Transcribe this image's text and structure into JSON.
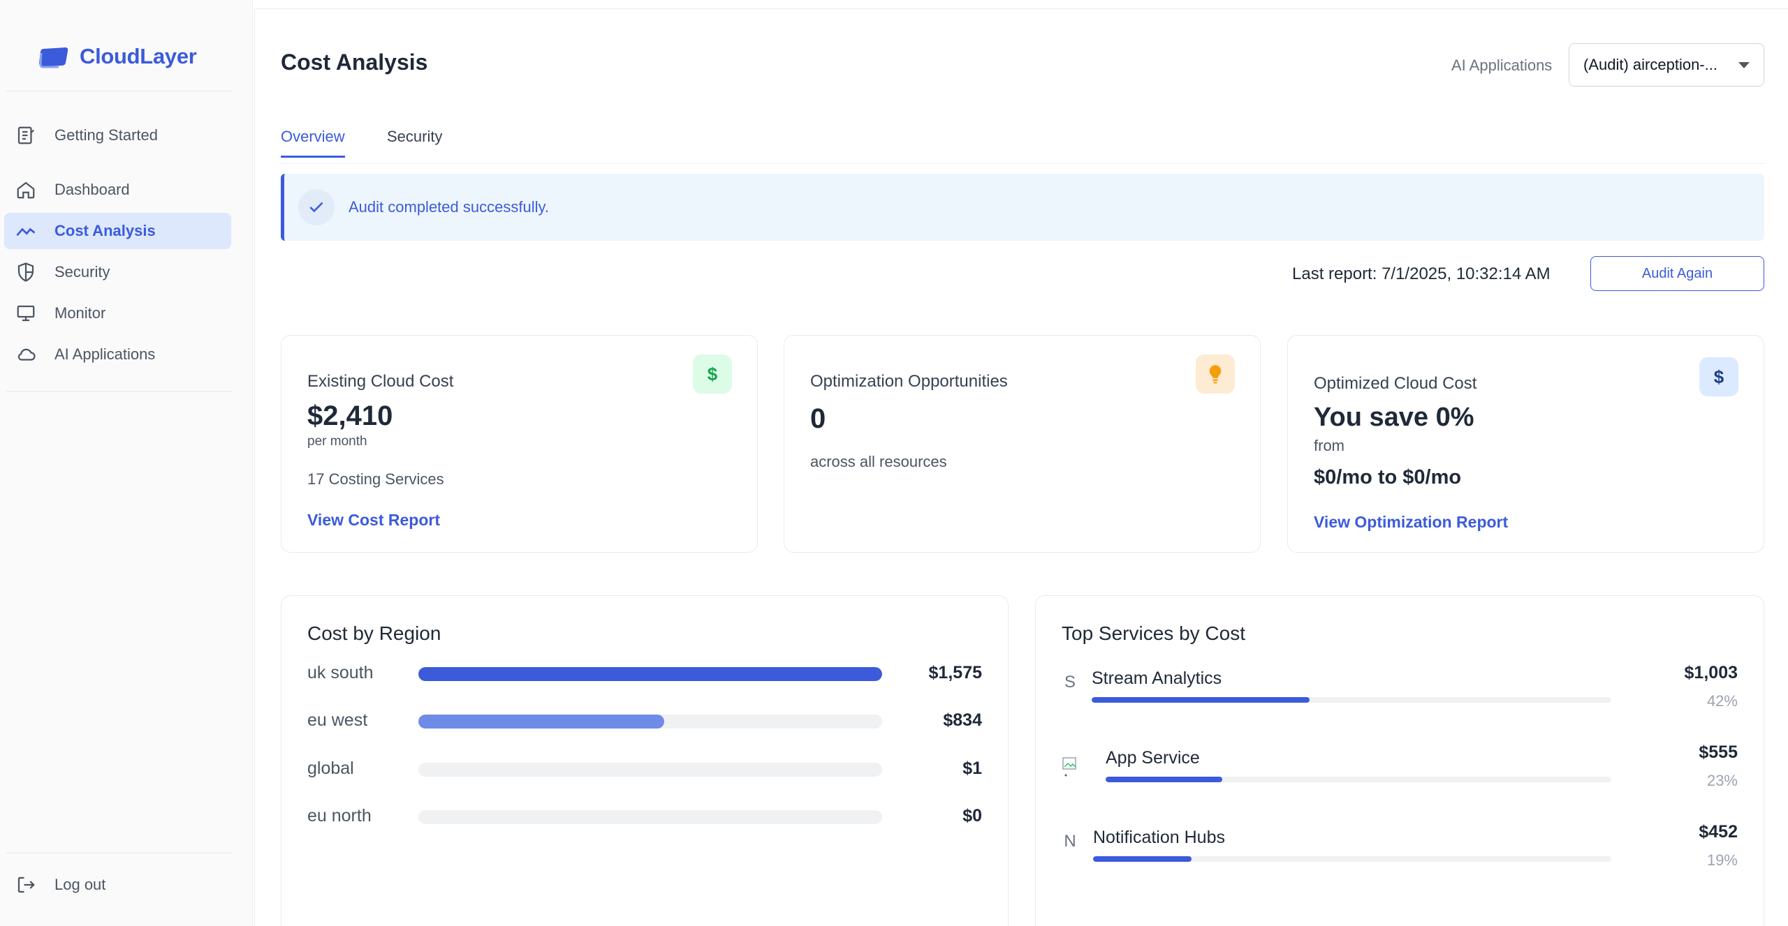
{
  "brand": {
    "name": "CloudLayer",
    "color": "#3b5bdb"
  },
  "sidebar": {
    "items": [
      {
        "label": "Getting Started",
        "icon": "clipboard-list-icon"
      },
      {
        "label": "Dashboard",
        "icon": "home-icon"
      },
      {
        "label": "Cost Analysis",
        "icon": "trend-line-icon",
        "active": true
      },
      {
        "label": "Security",
        "icon": "shield-icon"
      },
      {
        "label": "Monitor",
        "icon": "monitor-icon"
      },
      {
        "label": "AI Applications",
        "icon": "cloud-icon"
      }
    ],
    "logout": {
      "label": "Log out",
      "icon": "logout-icon"
    }
  },
  "header": {
    "title": "Cost Analysis",
    "app_label": "AI Applications",
    "app_select_value": "(Audit) airception-..."
  },
  "tabs": [
    {
      "label": "Overview",
      "active": true
    },
    {
      "label": "Security",
      "active": false
    }
  ],
  "alert": {
    "message": "Audit completed successfully."
  },
  "report": {
    "last_report": "Last report: 7/1/2025, 10:32:14 AM",
    "audit_again_label": "Audit Again"
  },
  "cards": {
    "existing": {
      "title": "Existing Cloud Cost",
      "icon": "dollar-icon",
      "amount": "$2,410",
      "period": "per month",
      "services": "17 Costing Services",
      "link": "View Cost Report"
    },
    "opportunities": {
      "title": "Optimization Opportunities",
      "icon": "lightbulb-icon",
      "count": "0",
      "subtitle": "across all resources"
    },
    "optimized": {
      "title": "Optimized Cloud Cost",
      "icon": "dollar-icon",
      "savings": "You save 0%",
      "from": "from",
      "range": "$0/mo to $0/mo",
      "link": "View Optimization Report"
    }
  },
  "cost_by_region": {
    "title": "Cost by Region",
    "rows": [
      {
        "name": "uk south",
        "value": "$1,575",
        "fraction": 1.0,
        "color": "#3b5bdb"
      },
      {
        "name": "eu west",
        "value": "$834",
        "fraction": 0.53,
        "color": "#6f8be8"
      },
      {
        "name": "global",
        "value": "$1",
        "fraction": 0,
        "color": "#3b5bdb"
      },
      {
        "name": "eu north",
        "value": "$0",
        "fraction": 0,
        "color": "#3b5bdb"
      }
    ]
  },
  "top_services": {
    "title": "Top Services by Cost",
    "rows": [
      {
        "badge": "S",
        "name": "Stream Analytics",
        "value": "$1,003",
        "percent": "42%",
        "fraction": 0.42
      },
      {
        "badge": "",
        "name": "App Service",
        "value": "$555",
        "percent": "23%",
        "fraction": 0.23
      },
      {
        "badge": "N",
        "name": "Notification Hubs",
        "value": "$452",
        "percent": "19%",
        "fraction": 0.19
      }
    ]
  }
}
